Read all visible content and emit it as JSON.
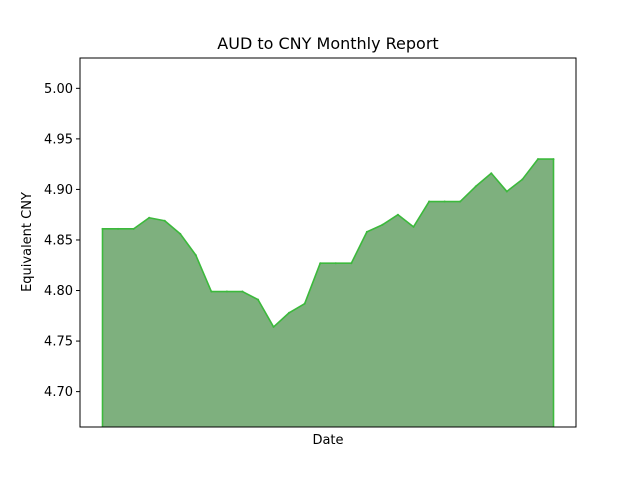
{
  "chart_data": {
    "type": "area",
    "title": "AUD to CNY Monthly Report",
    "xlabel": "Date",
    "ylabel": "Equivalent CNY",
    "ylim": [
      4.665,
      5.03
    ],
    "yticks": [
      "4.70",
      "4.75",
      "4.80",
      "4.85",
      "4.90",
      "4.95",
      "5.00"
    ],
    "grid": false,
    "colors": {
      "fill": "#7eb07e",
      "line": "#3cb93c"
    },
    "values": [
      4.861,
      4.861,
      4.861,
      4.872,
      4.869,
      4.856,
      4.835,
      4.799,
      4.799,
      4.799,
      4.791,
      4.764,
      4.778,
      4.787,
      4.827,
      4.827,
      4.827,
      4.858,
      4.865,
      4.875,
      4.863,
      4.888,
      4.888,
      4.888,
      4.903,
      4.916,
      4.898,
      4.91,
      4.93,
      4.93
    ]
  }
}
